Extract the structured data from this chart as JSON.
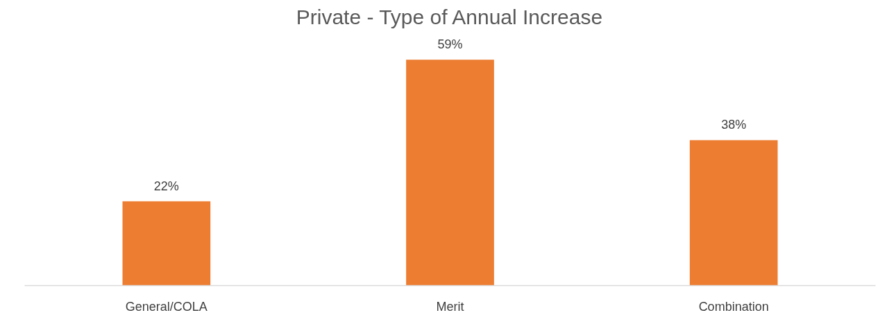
{
  "chart_data": {
    "type": "bar",
    "title": "Private - Type of Annual Increase",
    "categories": [
      "General/COLA",
      "Merit",
      "Combination"
    ],
    "values": [
      22,
      59,
      38
    ],
    "value_labels": [
      "22%",
      "59%",
      "38%"
    ],
    "color": "#ed7d31",
    "grid": false
  }
}
